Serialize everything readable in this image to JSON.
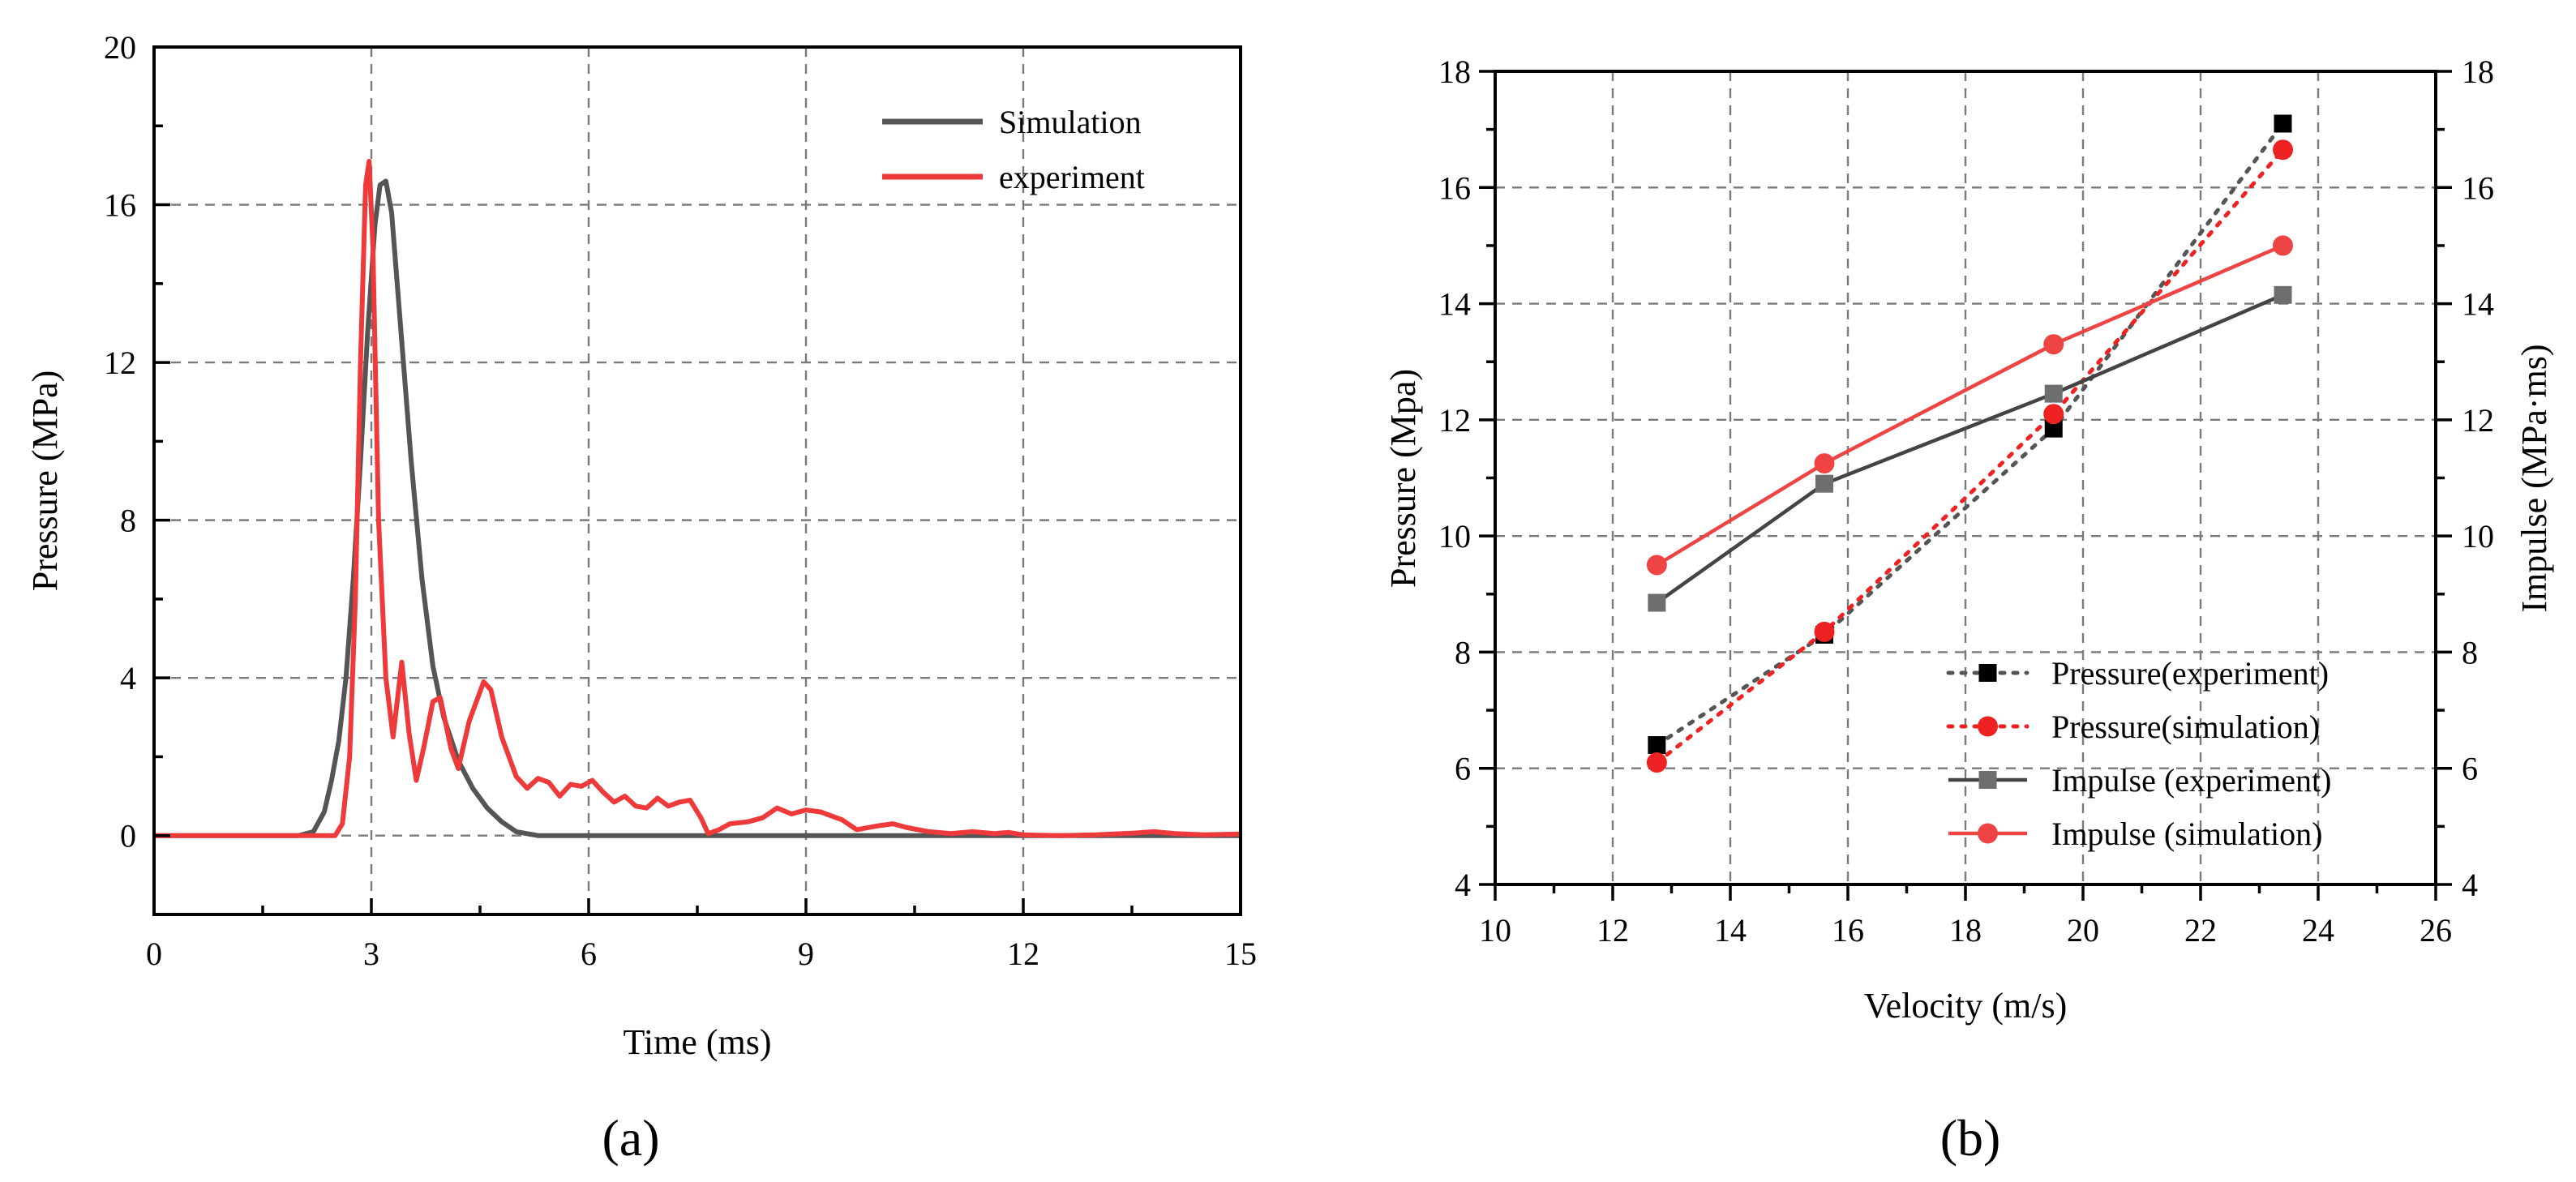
{
  "chart_data": [
    {
      "id": "a",
      "type": "line",
      "caption": "(a)",
      "xlabel": "Time (ms)",
      "ylabel": "Pressure (MPa)",
      "xlim": [
        0,
        15
      ],
      "ylim": [
        -2,
        20
      ],
      "xticks": [
        0,
        3,
        6,
        9,
        12,
        15
      ],
      "yticks": [
        0,
        4,
        8,
        12,
        16,
        20
      ],
      "grid": true,
      "legend_position": "top-right",
      "series": [
        {
          "name": "Simulation",
          "color": "#555555",
          "points": [
            [
              0,
              0
            ],
            [
              2.0,
              0
            ],
            [
              2.2,
              0.1
            ],
            [
              2.35,
              0.6
            ],
            [
              2.45,
              1.4
            ],
            [
              2.55,
              2.4
            ],
            [
              2.65,
              4.0
            ],
            [
              2.75,
              6.5
            ],
            [
              2.85,
              9.5
            ],
            [
              2.95,
              12.8
            ],
            [
              3.05,
              15.5
            ],
            [
              3.12,
              16.5
            ],
            [
              3.2,
              16.6
            ],
            [
              3.28,
              15.8
            ],
            [
              3.4,
              13.0
            ],
            [
              3.55,
              9.5
            ],
            [
              3.7,
              6.5
            ],
            [
              3.85,
              4.3
            ],
            [
              4.0,
              3.0
            ],
            [
              4.2,
              1.9
            ],
            [
              4.4,
              1.2
            ],
            [
              4.6,
              0.7
            ],
            [
              4.8,
              0.35
            ],
            [
              5.0,
              0.1
            ],
            [
              5.3,
              0
            ],
            [
              15,
              0
            ]
          ]
        },
        {
          "name": "experiment",
          "color": "#ee3a3a",
          "points": [
            [
              0,
              0
            ],
            [
              2.3,
              0
            ],
            [
              2.5,
              0
            ],
            [
              2.6,
              0.3
            ],
            [
              2.7,
              2.0
            ],
            [
              2.78,
              6.0
            ],
            [
              2.85,
              12.0
            ],
            [
              2.92,
              16.5
            ],
            [
              2.97,
              17.1
            ],
            [
              3.02,
              15.0
            ],
            [
              3.1,
              8.0
            ],
            [
              3.2,
              4.0
            ],
            [
              3.3,
              2.5
            ],
            [
              3.42,
              4.4
            ],
            [
              3.52,
              2.6
            ],
            [
              3.62,
              1.4
            ],
            [
              3.72,
              2.2
            ],
            [
              3.85,
              3.4
            ],
            [
              3.95,
              3.5
            ],
            [
              4.1,
              2.2
            ],
            [
              4.2,
              1.7
            ],
            [
              4.35,
              2.9
            ],
            [
              4.55,
              3.9
            ],
            [
              4.65,
              3.7
            ],
            [
              4.8,
              2.5
            ],
            [
              5.0,
              1.5
            ],
            [
              5.15,
              1.2
            ],
            [
              5.3,
              1.45
            ],
            [
              5.45,
              1.35
            ],
            [
              5.6,
              1.0
            ],
            [
              5.75,
              1.3
            ],
            [
              5.9,
              1.25
            ],
            [
              6.05,
              1.4
            ],
            [
              6.2,
              1.1
            ],
            [
              6.35,
              0.85
            ],
            [
              6.5,
              1.0
            ],
            [
              6.65,
              0.75
            ],
            [
              6.8,
              0.7
            ],
            [
              6.95,
              0.95
            ],
            [
              7.1,
              0.75
            ],
            [
              7.25,
              0.85
            ],
            [
              7.4,
              0.9
            ],
            [
              7.55,
              0.45
            ],
            [
              7.65,
              0.05
            ],
            [
              7.8,
              0.15
            ],
            [
              7.95,
              0.3
            ],
            [
              8.2,
              0.35
            ],
            [
              8.4,
              0.45
            ],
            [
              8.6,
              0.7
            ],
            [
              8.8,
              0.55
            ],
            [
              9.0,
              0.65
            ],
            [
              9.2,
              0.6
            ],
            [
              9.5,
              0.4
            ],
            [
              9.7,
              0.15
            ],
            [
              10.0,
              0.25
            ],
            [
              10.2,
              0.3
            ],
            [
              10.4,
              0.2
            ],
            [
              10.7,
              0.1
            ],
            [
              11.0,
              0.05
            ],
            [
              11.3,
              0.1
            ],
            [
              11.6,
              0.05
            ],
            [
              11.8,
              0.08
            ],
            [
              12.0,
              0.02
            ],
            [
              12.5,
              0.0
            ],
            [
              13.0,
              0.02
            ],
            [
              13.5,
              0.06
            ],
            [
              13.8,
              0.1
            ],
            [
              14.1,
              0.05
            ],
            [
              14.5,
              0.02
            ],
            [
              15,
              0.04
            ]
          ]
        }
      ]
    },
    {
      "id": "b",
      "type": "line",
      "caption": "(b)",
      "xlabel": "Velocity (m/s)",
      "ylabel": "Pressure (Mpa)",
      "y2label": "Impulse (MPa·ms)",
      "xlim": [
        10,
        26
      ],
      "ylim": [
        4,
        18
      ],
      "y2lim": [
        4,
        18
      ],
      "xticks": [
        10,
        12,
        14,
        16,
        18,
        20,
        22,
        24,
        26
      ],
      "yticks": [
        4,
        6,
        8,
        10,
        12,
        14,
        16,
        18
      ],
      "y2ticks": [
        4,
        6,
        8,
        10,
        12,
        14,
        16,
        18
      ],
      "grid": true,
      "legend_position": "bottom-right",
      "x": [
        12.75,
        15.6,
        19.5,
        23.4
      ],
      "series": [
        {
          "name": "Pressure(experiment)",
          "color": "#000000",
          "line_color": "#555555",
          "marker": "square",
          "style": "dotted",
          "values": [
            6.4,
            8.3,
            11.85,
            17.1
          ]
        },
        {
          "name": "Pressure(simulation)",
          "color": "#ee2222",
          "line_color": "#ee2222",
          "marker": "circle",
          "style": "dotted",
          "values": [
            6.1,
            8.35,
            12.1,
            16.65
          ]
        },
        {
          "name": "Impulse (experiment)",
          "color": "#6e6e6e",
          "line_color": "#444444",
          "marker": "square",
          "style": "solid",
          "values": [
            8.85,
            10.9,
            12.45,
            14.15
          ]
        },
        {
          "name": "Impulse (simulation)",
          "color": "#ee4444",
          "line_color": "#ee4444",
          "marker": "circle",
          "style": "solid",
          "values": [
            9.5,
            11.25,
            13.3,
            15.0
          ]
        }
      ]
    }
  ]
}
